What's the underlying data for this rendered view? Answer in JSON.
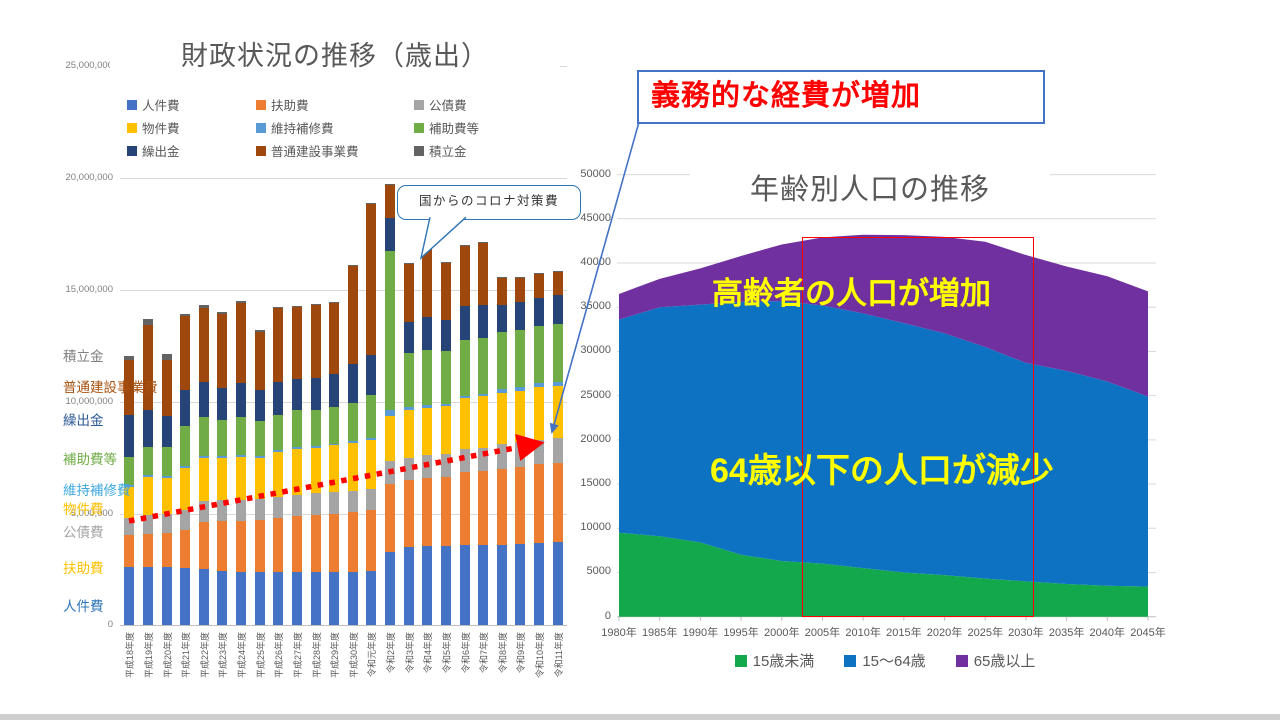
{
  "annotations": {
    "mandatory_expenses": "義務的な経費が増加",
    "covid_callout": "国からのコロナ対策費",
    "elderly_increase": "高齢者の人口が増加",
    "under64_decrease": "64歳以下の人口が減少"
  },
  "chart_data": [
    {
      "type": "bar",
      "stacked": true,
      "title": "財政状況の推移（歳出）",
      "ylim": [
        0,
        25000000
      ],
      "y_tick_labels": [
        "25,000,000",
        "20,000,000",
        "15,000,000",
        "10,000,000",
        "5,000,000",
        "0"
      ],
      "grid": true,
      "legend_position": "top",
      "categories": [
        "平成18年度",
        "平成19年度",
        "平成20年度",
        "平成21年度",
        "平成22年度",
        "平成23年度",
        "平成24年度",
        "平成25年度",
        "平成26年度",
        "平成27年度",
        "平成28年度",
        "平成29年度",
        "平成30年度",
        "令和元年度",
        "令和2年度",
        "令和3年度",
        "令和4年度",
        "令和5年度",
        "令和6年度",
        "令和7年度",
        "令和8年度",
        "令和9年度",
        "令和10年度",
        "令和11年度"
      ],
      "series": [
        {
          "name": "人件費",
          "color": "#4472C4",
          "values": [
            2610000,
            2610000,
            2600000,
            2550000,
            2500000,
            2450000,
            2400000,
            2400000,
            2400000,
            2400000,
            2400000,
            2400000,
            2400000,
            2450000,
            3300000,
            3500000,
            3550000,
            3550000,
            3600000,
            3600000,
            3600000,
            3650000,
            3700000,
            3730000
          ]
        },
        {
          "name": "扶助費",
          "color": "#ED7D31",
          "values": [
            1420000,
            1490000,
            1550000,
            1700000,
            2100000,
            2200000,
            2250000,
            2300000,
            2400000,
            2500000,
            2550000,
            2600000,
            2650000,
            2700000,
            3000000,
            3000000,
            3050000,
            3100000,
            3250000,
            3300000,
            3400000,
            3450000,
            3500000,
            3510000
          ]
        },
        {
          "name": "公債費",
          "color": "#A5A5A5",
          "values": [
            750000,
            820000,
            850000,
            900000,
            950000,
            950000,
            950000,
            950000,
            950000,
            950000,
            950000,
            950000,
            950000,
            950000,
            1050000,
            1000000,
            1000000,
            1000000,
            1050000,
            1050000,
            1100000,
            1100000,
            1100000,
            1120000
          ]
        },
        {
          "name": "物件費",
          "color": "#FFC000",
          "values": [
            1410000,
            1710000,
            1600000,
            1900000,
            1950000,
            1900000,
            1950000,
            1850000,
            2000000,
            2050000,
            2050000,
            2100000,
            2150000,
            2200000,
            2000000,
            2150000,
            2100000,
            2150000,
            2250000,
            2300000,
            2300000,
            2300000,
            2350000,
            2350000
          ]
        },
        {
          "name": "維持補修費",
          "color": "#5B9BD5",
          "values": [
            100000,
            80000,
            80000,
            80000,
            80000,
            80000,
            80000,
            80000,
            80000,
            80000,
            80000,
            80000,
            80000,
            100000,
            300000,
            100000,
            150000,
            100000,
            100000,
            100000,
            150000,
            150000,
            170000,
            180000
          ]
        },
        {
          "name": "補助費等",
          "color": "#70AD47",
          "values": [
            1240000,
            1270000,
            1300000,
            1800000,
            1750000,
            1600000,
            1700000,
            1550000,
            1600000,
            1650000,
            1600000,
            1650000,
            1700000,
            1900000,
            7100000,
            2450000,
            2450000,
            2350000,
            2500000,
            2500000,
            2550000,
            2550000,
            2580000,
            2610000
          ]
        },
        {
          "name": "繰出金",
          "color": "#264478",
          "values": [
            1870000,
            1640000,
            1400000,
            1600000,
            1550000,
            1450000,
            1500000,
            1400000,
            1450000,
            1400000,
            1450000,
            1450000,
            1750000,
            1800000,
            1450000,
            1350000,
            1500000,
            1400000,
            1550000,
            1500000,
            1250000,
            1250000,
            1250000,
            1270000
          ]
        },
        {
          "name": "普通建設事業費",
          "color": "#9E480E",
          "values": [
            2460000,
            3800000,
            2500000,
            3300000,
            3300000,
            3300000,
            3600000,
            2600000,
            3300000,
            3200000,
            3250000,
            3200000,
            4400000,
            6750000,
            1500000,
            2600000,
            3000000,
            2550000,
            2650000,
            2750000,
            1200000,
            1100000,
            1050000,
            1030000
          ]
        },
        {
          "name": "積立金",
          "color": "#636363",
          "values": [
            200000,
            300000,
            250000,
            80000,
            150000,
            100000,
            80000,
            80000,
            50000,
            50000,
            50000,
            50000,
            50000,
            50000,
            50000,
            50000,
            50000,
            50000,
            50000,
            50000,
            50000,
            50000,
            50000,
            50000
          ]
        }
      ],
      "side_labels": [
        {
          "label": "積立金",
          "color": "#808080",
          "y": 345
        },
        {
          "label": "普通建設事業費",
          "color": "#A6510F",
          "y": 376
        },
        {
          "label": "繰出金",
          "color": "#2E5A94",
          "y": 409
        },
        {
          "label": "補助費等",
          "color": "#70AD47",
          "y": 448
        },
        {
          "label": "維持補修費",
          "color": "#3FA9DC",
          "y": 479
        },
        {
          "label": "物件費",
          "color": "#FFC000",
          "y": 498
        },
        {
          "label": "公債費",
          "color": "#A5A5A5",
          "y": 521
        },
        {
          "label": "扶助費",
          "color": "#FFC000",
          "y": 557
        },
        {
          "label": "人件費",
          "color": "#2E75B6",
          "y": 595
        }
      ]
    },
    {
      "type": "area",
      "stacked": true,
      "title": "年齢別人口の推移",
      "ylim": [
        0,
        50000
      ],
      "y_tick_labels": [
        "50000",
        "45000",
        "40000",
        "35000",
        "30000",
        "25000",
        "20000",
        "15000",
        "10000",
        "5000",
        "0"
      ],
      "grid": true,
      "legend_position": "bottom",
      "categories": [
        "1980年",
        "1985年",
        "1990年",
        "1995年",
        "2000年",
        "2005年",
        "2010年",
        "2015年",
        "2020年",
        "2025年",
        "2030年",
        "2035年",
        "2040年",
        "2045年"
      ],
      "series": [
        {
          "name": "15歳未満",
          "color": "#14A84C",
          "values": [
            9500,
            9100,
            8400,
            7000,
            6300,
            6000,
            5500,
            5000,
            4700,
            4300,
            4000,
            3700,
            3500,
            3400
          ]
        },
        {
          "name": "15〜64歳",
          "color": "#0E72C3",
          "values": [
            24100,
            25900,
            26900,
            28600,
            29400,
            29200,
            28800,
            28200,
            27350,
            26200,
            24700,
            24100,
            23100,
            21500
          ]
        },
        {
          "name": "65歳以上",
          "color": "#7030A0",
          "values": [
            2900,
            3200,
            4100,
            5200,
            6400,
            7700,
            8900,
            9950,
            10900,
            11900,
            12200,
            11800,
            11900,
            11900
          ]
        }
      ]
    }
  ]
}
